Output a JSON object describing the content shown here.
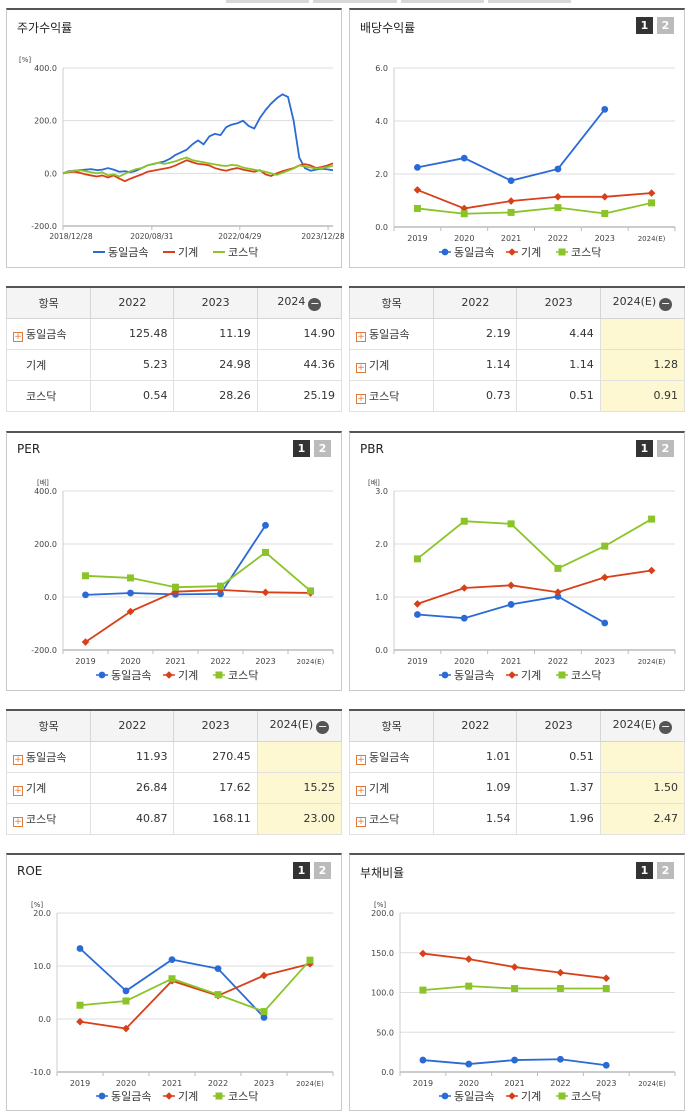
{
  "colors": {
    "company": "#2a6ad6",
    "industry": "#d8401a",
    "kosdaq": "#8ac428"
  },
  "legend": {
    "company": "동일금속",
    "industry": "기계",
    "kosdaq": "코스닥"
  },
  "panels": {
    "stock": {
      "title": "주가수익률",
      "chart_data": {
        "type": "line",
        "unit": "[%]",
        "y_ticks": [
          "400.0",
          "200.0",
          "0.0",
          "-200.0"
        ],
        "ylim": [
          -200,
          400
        ],
        "x_ticks": [
          "2018/12/28",
          "2020/08/31",
          "2022/04/29",
          "2023/12/28"
        ],
        "x_range": [
          "2018-12-28",
          "2024-01-31"
        ],
        "series": [
          {
            "name": "동일금속",
            "key": "company",
            "values": [
              0,
              8,
              10,
              12,
              14,
              16,
              12,
              14,
              20,
              14,
              6,
              8,
              4,
              10,
              20,
              30,
              35,
              40,
              45,
              55,
              70,
              80,
              90,
              110,
              125,
              110,
              140,
              150,
              145,
              175,
              185,
              190,
              200,
              180,
              170,
              210,
              240,
              265,
              285,
              300,
              290,
              200,
              60,
              20,
              10,
              14,
              18,
              15,
              12
            ]
          },
          {
            "name": "기계",
            "key": "industry",
            "values": [
              0,
              4,
              6,
              2,
              -4,
              -8,
              -12,
              -8,
              -16,
              -8,
              -20,
              -30,
              -20,
              -12,
              -4,
              6,
              10,
              14,
              18,
              22,
              30,
              40,
              50,
              42,
              36,
              34,
              30,
              20,
              14,
              10,
              16,
              20,
              14,
              10,
              6,
              12,
              -4,
              -10,
              0,
              8,
              14,
              20,
              30,
              35,
              30,
              20,
              24,
              30,
              38
            ]
          },
          {
            "name": "코스닥",
            "key": "kosdaq",
            "values": [
              0,
              6,
              10,
              12,
              8,
              4,
              0,
              4,
              -8,
              -4,
              -12,
              -2,
              8,
              16,
              20,
              30,
              36,
              40,
              36,
              40,
              46,
              54,
              60,
              50,
              46,
              42,
              38,
              34,
              30,
              28,
              32,
              30,
              22,
              18,
              14,
              10,
              6,
              0,
              -6,
              2,
              10,
              18,
              30,
              26,
              22,
              18,
              20,
              24,
              28
            ]
          }
        ]
      }
    },
    "dividend": {
      "title": "배당수익률",
      "btn1": "1",
      "btn2": "2",
      "chart_data": {
        "type": "line",
        "y_ticks": [
          "6.0",
          "4.0",
          "2.0",
          "0.0"
        ],
        "ylim": [
          0,
          6
        ],
        "categories": [
          "2019",
          "2020",
          "2021",
          "2022",
          "2023",
          "2024(E)"
        ],
        "series": [
          {
            "name": "동일금속",
            "key": "company",
            "values": [
              2.25,
              2.6,
              1.75,
              2.19,
              4.44,
              null
            ]
          },
          {
            "name": "기계",
            "key": "industry",
            "values": [
              1.4,
              0.7,
              0.98,
              1.14,
              1.14,
              1.28
            ]
          },
          {
            "name": "코스닥",
            "key": "kosdaq",
            "values": [
              0.7,
              0.5,
              0.55,
              0.73,
              0.51,
              0.91
            ]
          }
        ]
      }
    },
    "per": {
      "title": "PER",
      "btn1": "1",
      "btn2": "2",
      "chart_data": {
        "type": "line",
        "unit": "[배]",
        "y_ticks": [
          "400.0",
          "200.0",
          "0.0",
          "-200.0"
        ],
        "ylim": [
          -200,
          400
        ],
        "categories": [
          "2019",
          "2020",
          "2021",
          "2022",
          "2023",
          "2024(E)"
        ],
        "series": [
          {
            "name": "동일금속",
            "key": "company",
            "values": [
              8,
              15,
              10,
              11.93,
              270.45,
              null
            ]
          },
          {
            "name": "기계",
            "key": "industry",
            "values": [
              -170,
              -55,
              20,
              26.84,
              17.62,
              15.25
            ]
          },
          {
            "name": "코스닥",
            "key": "kosdaq",
            "values": [
              80,
              72,
              37,
              40.87,
              168.11,
              23.0
            ]
          }
        ]
      }
    },
    "pbr": {
      "title": "PBR",
      "btn1": "1",
      "btn2": "2",
      "chart_data": {
        "type": "line",
        "unit": "[배]",
        "y_ticks": [
          "3.0",
          "2.0",
          "1.0",
          "0.0"
        ],
        "ylim": [
          0,
          3
        ],
        "categories": [
          "2019",
          "2020",
          "2021",
          "2022",
          "2023",
          "2024(E)"
        ],
        "series": [
          {
            "name": "동일금속",
            "key": "company",
            "values": [
              0.67,
              0.6,
              0.86,
              1.01,
              0.51,
              null
            ]
          },
          {
            "name": "기계",
            "key": "industry",
            "values": [
              0.87,
              1.17,
              1.22,
              1.09,
              1.37,
              1.5
            ]
          },
          {
            "name": "코스닥",
            "key": "kosdaq",
            "values": [
              1.72,
              2.43,
              2.38,
              1.54,
              1.96,
              2.47
            ]
          }
        ]
      }
    },
    "roe": {
      "title": "ROE",
      "btn1": "1",
      "btn2": "2",
      "chart_data": {
        "type": "line",
        "unit": "[%]",
        "y_ticks": [
          "20.0",
          "10.0",
          "0.0",
          "-10.0"
        ],
        "ylim": [
          -10,
          20
        ],
        "categories": [
          "2019",
          "2020",
          "2021",
          "2022",
          "2023",
          "2024(E)"
        ],
        "series": [
          {
            "name": "동일금속",
            "key": "company",
            "values": [
              13.3,
              5.3,
              11.2,
              9.5,
              0.3,
              null
            ]
          },
          {
            "name": "기계",
            "key": "industry",
            "values": [
              -0.5,
              -1.8,
              7.2,
              4.4,
              8.2,
              10.4
            ]
          },
          {
            "name": "코스닥",
            "key": "kosdaq",
            "values": [
              2.6,
              3.4,
              7.6,
              4.6,
              1.4,
              11.1
            ]
          }
        ]
      }
    },
    "debt": {
      "title": "부채비율",
      "btn1": "1",
      "btn2": "2",
      "chart_data": {
        "type": "line",
        "unit": "[%]",
        "y_ticks": [
          "200.0",
          "150.0",
          "100.0",
          "50.0",
          "0.0"
        ],
        "ylim": [
          0,
          200
        ],
        "categories": [
          "2019",
          "2020",
          "2021",
          "2022",
          "2023",
          "2024(E)"
        ],
        "series": [
          {
            "name": "동일금속",
            "key": "company",
            "values": [
              15,
              10,
              15,
              16,
              8.5,
              null
            ]
          },
          {
            "name": "기계",
            "key": "industry",
            "values": [
              149,
              142,
              132,
              125,
              118,
              null
            ]
          },
          {
            "name": "코스닥",
            "key": "kosdaq",
            "values": [
              103,
              108,
              105,
              105,
              105,
              null
            ]
          }
        ]
      }
    }
  },
  "tables": {
    "stock": {
      "header": [
        "항목",
        "2022",
        "2023",
        "2024"
      ],
      "rows": [
        {
          "label": "동일금속",
          "plus": true,
          "cells": [
            "125.48",
            "11.19",
            "14.90"
          ]
        },
        {
          "label": "기계",
          "plus": false,
          "cells": [
            "5.23",
            "24.98",
            "44.36"
          ]
        },
        {
          "label": "코스닥",
          "plus": false,
          "cells": [
            "0.54",
            "28.26",
            "25.19"
          ]
        }
      ]
    },
    "dividend": {
      "header": [
        "항목",
        "2022",
        "2023",
        "2024(E)"
      ],
      "rows": [
        {
          "label": "동일금속",
          "plus": true,
          "cells": [
            "2.19",
            "4.44",
            ""
          ]
        },
        {
          "label": "기계",
          "plus": true,
          "cells": [
            "1.14",
            "1.14",
            "1.28"
          ]
        },
        {
          "label": "코스닥",
          "plus": true,
          "cells": [
            "0.73",
            "0.51",
            "0.91"
          ]
        }
      ]
    },
    "per": {
      "header": [
        "항목",
        "2022",
        "2023",
        "2024(E)"
      ],
      "rows": [
        {
          "label": "동일금속",
          "plus": true,
          "cells": [
            "11.93",
            "270.45",
            ""
          ]
        },
        {
          "label": "기계",
          "plus": true,
          "cells": [
            "26.84",
            "17.62",
            "15.25"
          ]
        },
        {
          "label": "코스닥",
          "plus": true,
          "cells": [
            "40.87",
            "168.11",
            "23.00"
          ]
        }
      ]
    },
    "pbr": {
      "header": [
        "항목",
        "2022",
        "2023",
        "2024(E)"
      ],
      "rows": [
        {
          "label": "동일금속",
          "plus": true,
          "cells": [
            "1.01",
            "0.51",
            ""
          ]
        },
        {
          "label": "기계",
          "plus": true,
          "cells": [
            "1.09",
            "1.37",
            "1.50"
          ]
        },
        {
          "label": "코스닥",
          "plus": true,
          "cells": [
            "1.54",
            "1.96",
            "2.47"
          ]
        }
      ]
    }
  }
}
